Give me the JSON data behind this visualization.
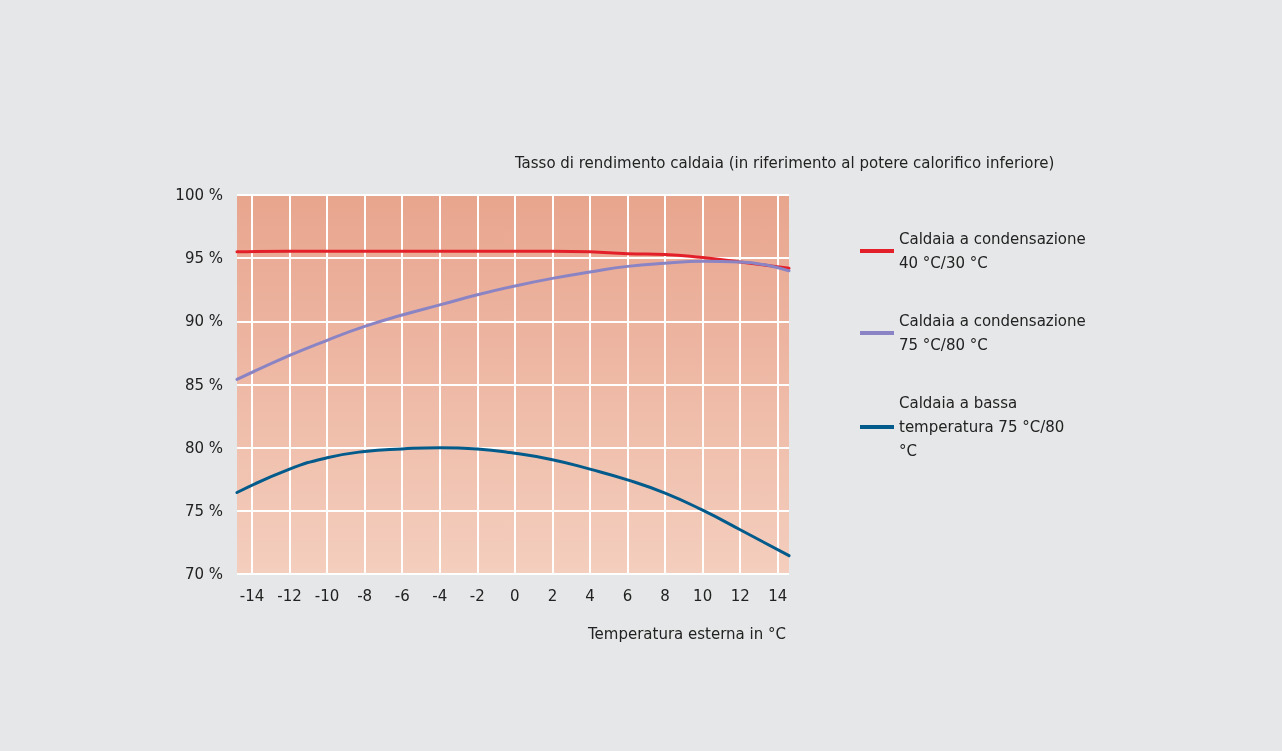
{
  "chart_data": {
    "type": "line",
    "ylabel": "Tasso di rendimento caldaia (in riferimento al potere calorifico inferiore)",
    "xlabel": "Temperatura esterna in °C",
    "xlim": [
      -14.8,
      14.6
    ],
    "xticks": [
      -14,
      -12,
      -10,
      -8,
      -6,
      -4,
      -2,
      0,
      2,
      4,
      6,
      8,
      10,
      12,
      14
    ],
    "ylim": [
      70,
      100
    ],
    "yticks": [
      {
        "value": 70,
        "label": "70 %"
      },
      {
        "value": 75,
        "label": "75 %"
      },
      {
        "value": 80,
        "label": "80 %"
      },
      {
        "value": 85,
        "label": "85 %"
      },
      {
        "value": 90,
        "label": "90 %"
      },
      {
        "value": 95,
        "label": "95 %"
      },
      {
        "value": 100,
        "label": "100 %"
      }
    ],
    "x": [
      -14.8,
      -12,
      -10,
      -8,
      -6,
      -4,
      -2,
      0,
      2,
      4,
      6,
      8,
      10,
      12,
      14.6
    ],
    "series": [
      {
        "name": "Caldaia a condensazione 40 °C/30 °C",
        "color": "#e3202a",
        "values": [
          95.5,
          95.55,
          95.55,
          95.55,
          95.55,
          95.55,
          95.55,
          95.55,
          95.55,
          95.5,
          95.35,
          95.3,
          95.05,
          94.7,
          94.2
        ]
      },
      {
        "name": "Caldaia a condensazione 75 °C/80 °C",
        "color": "#8a84c4",
        "values": [
          85.4,
          87.3,
          88.5,
          89.6,
          90.5,
          91.3,
          92.1,
          92.8,
          93.4,
          93.9,
          94.35,
          94.6,
          94.75,
          94.7,
          94.0
        ]
      },
      {
        "name": "Caldaia a bassa temperatura 75 °C/80 °C",
        "color": "#035b8c",
        "values": [
          76.45,
          78.3,
          79.2,
          79.7,
          79.9,
          80.0,
          79.9,
          79.55,
          79.05,
          78.3,
          77.45,
          76.4,
          75.05,
          73.5,
          71.45
        ]
      }
    ],
    "grid": true,
    "legend": "right",
    "marker": "none",
    "line_style": "solid"
  }
}
